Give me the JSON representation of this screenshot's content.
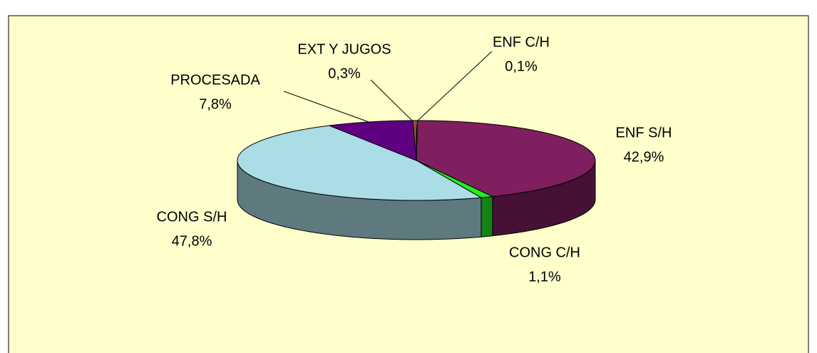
{
  "chart_data": {
    "type": "pie3d",
    "categories": [
      "ENF C/H",
      "ENF S/H",
      "CONG C/H",
      "CONG S/H",
      "PROCESADA",
      "EXT Y JUGOS"
    ],
    "values": [
      0.1,
      42.9,
      1.1,
      47.8,
      7.8,
      0.3
    ],
    "value_labels": [
      "0,1%",
      "42,9%",
      "1,1%",
      "47,8%",
      "7,8%",
      "0,3%"
    ],
    "colors": [
      "#ffff99",
      "#7f1f5f",
      "#22ee22",
      "#aadde6",
      "#5f0080",
      "#996633"
    ],
    "legend": false
  }
}
